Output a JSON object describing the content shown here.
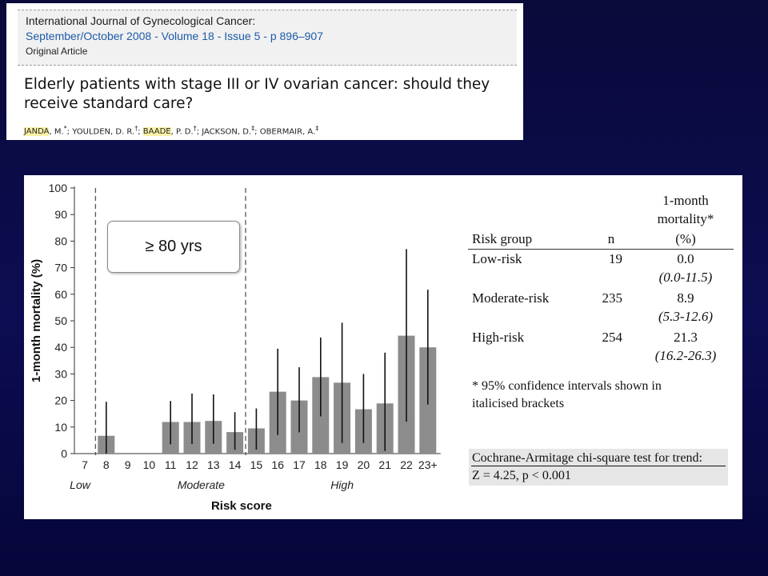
{
  "header": {
    "journal": "International Journal of Gynecological Cancer:",
    "issue": "September/October 2008 - Volume 18 - Issue 5 - p 896–907",
    "article_type": "Original Article",
    "title": "Elderly patients with stage III or IV ovarian cancer: should they receive standard care?",
    "authors": [
      {
        "text": "JANDA",
        "highlight": true
      },
      {
        "text": ", M.",
        "highlight": false
      },
      {
        "text": "*",
        "highlight": false,
        "sup": true
      },
      {
        "text": "; YOULDEN, D. R.",
        "highlight": false
      },
      {
        "text": "†",
        "highlight": false,
        "sup": true
      },
      {
        "text": "; ",
        "highlight": false
      },
      {
        "text": "BAADE",
        "highlight": true
      },
      {
        "text": ", P. D.",
        "highlight": false
      },
      {
        "text": "†",
        "highlight": false,
        "sup": true
      },
      {
        "text": "; JACKSON, D.",
        "highlight": false
      },
      {
        "text": "‡",
        "highlight": false,
        "sup": true
      },
      {
        "text": "; OBERMAIR, A.",
        "highlight": false
      },
      {
        "text": "‡",
        "highlight": false,
        "sup": true
      }
    ],
    "highlight_color": "#fbf2a6"
  },
  "chart_data": {
    "type": "bar",
    "categories": [
      "7",
      "8",
      "9",
      "10",
      "11",
      "12",
      "13",
      "14",
      "15",
      "16",
      "17",
      "18",
      "19",
      "20",
      "21",
      "22",
      "23+"
    ],
    "values": [
      0,
      6.7,
      0,
      0,
      11.9,
      11.9,
      12.3,
      8.1,
      9.5,
      23.3,
      20,
      28.8,
      26.7,
      16.7,
      18.9,
      44.4,
      40
    ],
    "error_low": [
      null,
      0,
      null,
      null,
      3.5,
      3.6,
      3.7,
      1.5,
      1.5,
      7,
      8,
      14,
      4,
      4,
      1,
      12,
      18.5
    ],
    "error_high": [
      null,
      19.5,
      null,
      null,
      19.8,
      22.6,
      22.3,
      15.6,
      17,
      39.5,
      32.5,
      43.7,
      49.3,
      30,
      38,
      77,
      61.7
    ],
    "bar_color": "#8c8c8c",
    "ylabel": "1-month mortality (%)",
    "xlabel": "Risk score",
    "ylim": [
      0,
      100
    ],
    "yticks": [
      0,
      10,
      20,
      30,
      40,
      50,
      60,
      70,
      80,
      90,
      100
    ],
    "groups": [
      "Low",
      "Moderate",
      "High"
    ],
    "dividers_after": [
      "7",
      "14"
    ],
    "callout": "≥ 80 yrs"
  },
  "risk_table": {
    "headers": {
      "group": "Risk group",
      "n": "n",
      "mortality_line1": "1-month",
      "mortality_line2": "mortality*",
      "mortality_line3": "(%)"
    },
    "rows": [
      {
        "group": "Low-risk",
        "n": "19",
        "value": "0.0",
        "ci": "(0.0-11.5)"
      },
      {
        "group": "Moderate-risk",
        "n": "235",
        "value": "8.9",
        "ci": "(5.3-12.6)"
      },
      {
        "group": "High-risk",
        "n": "254",
        "value": "21.3",
        "ci": "(16.2-26.3)"
      }
    ],
    "footnote_line1": "* 95% confidence intervals shown in",
    "footnote_line2": "italicised brackets",
    "trend_line1": "Cochrane-Armitage chi-square test for trend:",
    "trend_line2": "Z = 4.25, p < 0.001"
  }
}
